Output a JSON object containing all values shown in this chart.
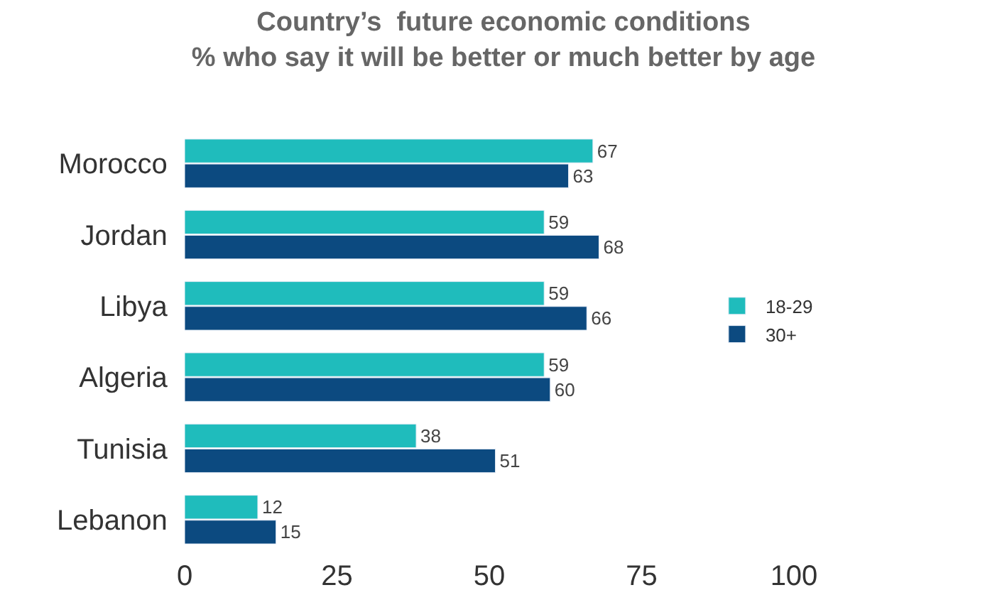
{
  "chart_data": {
    "type": "bar",
    "orientation": "horizontal",
    "title": "Country’s  future economic conditions\n% who say it will be better or much better by age",
    "categories": [
      "Morocco",
      "Jordan",
      "Libya",
      "Algeria",
      "Tunisia",
      "Lebanon"
    ],
    "series": [
      {
        "name": "18-29",
        "color": "#1fbcbc",
        "values": [
          67,
          59,
          59,
          59,
          38,
          12
        ]
      },
      {
        "name": "30+",
        "color": "#0c4a80",
        "values": [
          63,
          68,
          66,
          60,
          51,
          15
        ]
      }
    ],
    "xlim": [
      0,
      100
    ],
    "xticks": [
      0,
      25,
      50,
      75,
      100
    ],
    "legend": "right",
    "data_labels": true
  }
}
